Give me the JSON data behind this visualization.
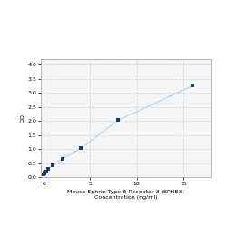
{
  "x": [
    0,
    0.0625,
    0.125,
    0.25,
    0.5,
    1,
    2,
    4,
    8,
    16
  ],
  "y": [
    0.1,
    0.13,
    0.16,
    0.2,
    0.3,
    0.42,
    0.65,
    1.02,
    2.02,
    3.25
  ],
  "line_color": "#b8d4ea",
  "marker_color": "#1a3a6b",
  "marker_size": 3.5,
  "xlabel_line1": "Mouse Ephrin Type B Receptor 3 (EPHB3)",
  "xlabel_line2": "Concentration (ng/ml)",
  "ylabel": "OD",
  "xlim": [
    -0.3,
    18
  ],
  "ylim": [
    0,
    4.2
  ],
  "yticks": [
    0,
    0.5,
    1,
    1.5,
    2,
    2.5,
    3,
    3.5,
    4
  ],
  "xticks": [
    0,
    5,
    10,
    15
  ],
  "grid_color": "#d0d0d0",
  "background_color": "#f5f5f5",
  "fig_background": "#ffffff",
  "xlabel_fontsize": 4.5,
  "axis_fontsize": 4.5,
  "ylabel_fontsize": 4.5
}
